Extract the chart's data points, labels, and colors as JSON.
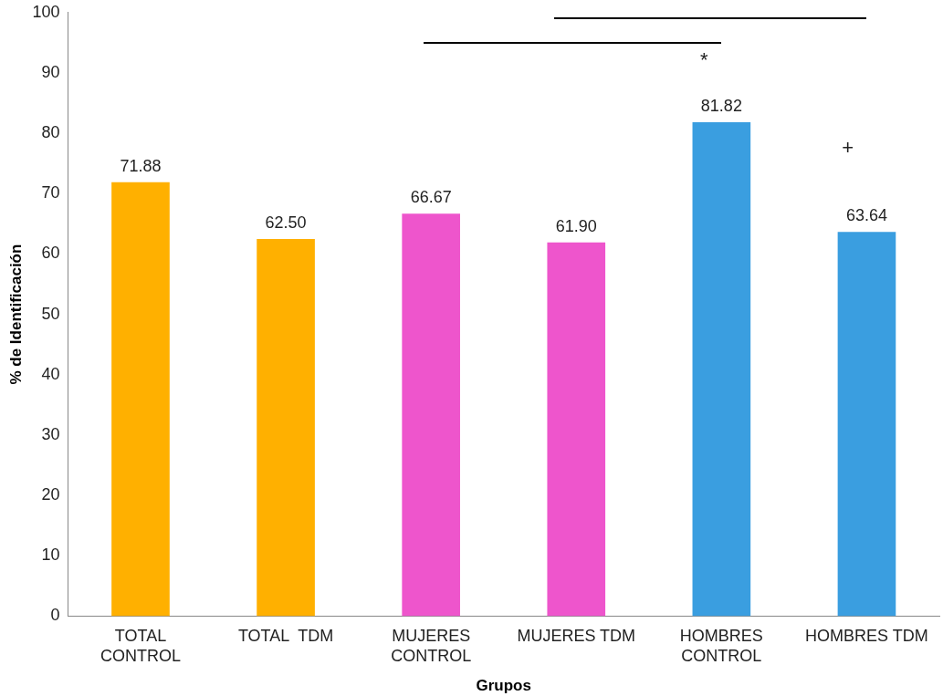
{
  "chart_data": {
    "type": "bar",
    "xlabel": "Grupos",
    "ylabel": "% de Identificación",
    "categories": [
      "TOTAL CONTROL",
      "TOTAL  TDM",
      "MUJERES CONTROL",
      "MUJERES TDM",
      "HOMBRES CONTROL",
      "HOMBRES TDM"
    ],
    "values": [
      71.88,
      62.5,
      66.67,
      61.9,
      81.82,
      63.64
    ],
    "value_labels": [
      "71.88",
      "62.50",
      "66.67",
      "61.90",
      "81.82",
      "63.64"
    ],
    "colors": [
      "#ffb000",
      "#ffb000",
      "#ee55cc",
      "#ee55cc",
      "#3a9ee0",
      "#3a9ee0"
    ],
    "ylim": [
      0,
      100
    ],
    "yticks": [
      0,
      10,
      20,
      30,
      40,
      50,
      60,
      70,
      80,
      90,
      100
    ],
    "grid": false,
    "legend": false,
    "annotations": [
      "*",
      "+"
    ]
  }
}
